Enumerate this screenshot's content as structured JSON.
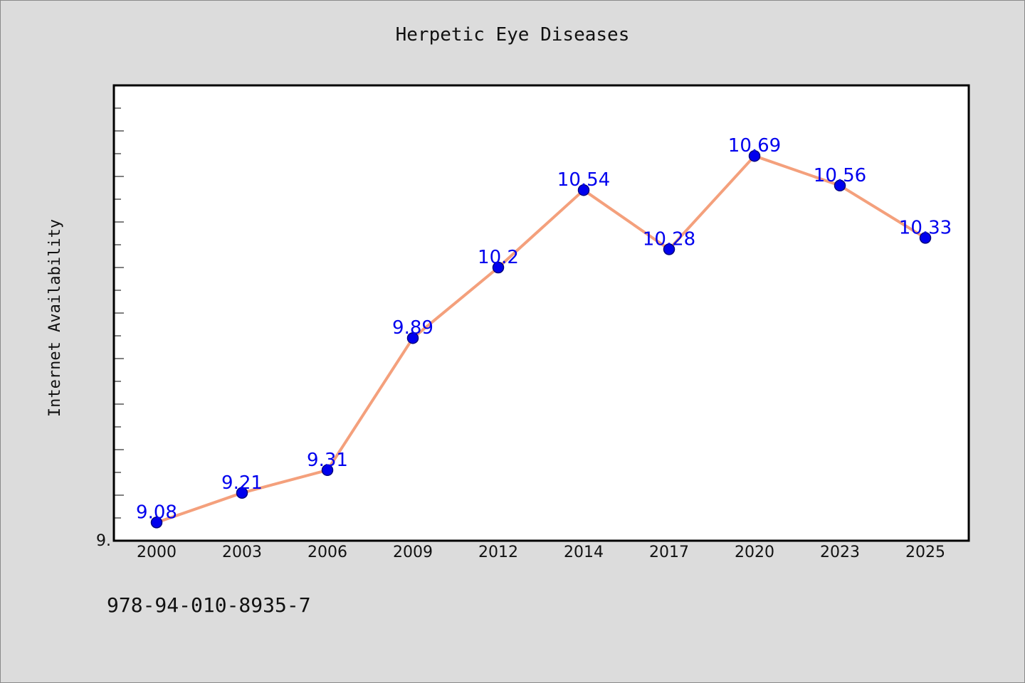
{
  "chart_data": {
    "type": "line",
    "title": "Herpetic Eye Diseases",
    "ylabel": "Internet Availability",
    "xlabel": "",
    "categories": [
      "2000",
      "2003",
      "2006",
      "2009",
      "2012",
      "2014",
      "2017",
      "2020",
      "2023",
      "2025"
    ],
    "series": [
      {
        "values": [
          9.08,
          9.21,
          9.31,
          9.89,
          10.2,
          10.54,
          10.28,
          10.69,
          10.56,
          10.33
        ]
      }
    ],
    "data_labels": [
      "9.08",
      "9.21",
      "9.31",
      "9.89",
      "10.2",
      "10.54",
      "10.28",
      "10.69",
      "10.56",
      "10.33"
    ],
    "y_tick_label": "9.",
    "ylim": [
      9.0,
      11.0
    ],
    "y_tick_step": 0.1,
    "y_labeled_ticks": [
      9.0
    ],
    "grid": false,
    "legend": "none",
    "colors": {
      "line": "#f4a07c",
      "marker_fill": "#0000ee",
      "marker_edge": "#000080",
      "data_label": "#0000ee",
      "plot_bg": "#ffffff",
      "figure_bg": "#dcdcdc"
    }
  },
  "footer": {
    "isbn": "978-94-010-8935-7"
  }
}
